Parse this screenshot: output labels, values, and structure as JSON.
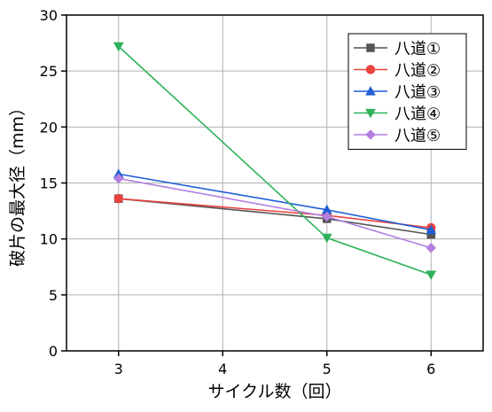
{
  "chart_data": {
    "type": "line",
    "xlabel": "サイクル数（回）",
    "ylabel": "破片の最大径（mm）",
    "xlim": [
      2.5,
      6.5
    ],
    "ylim": [
      0,
      30
    ],
    "xticks": [
      3,
      4,
      5,
      6
    ],
    "yticks": [
      0,
      5,
      10,
      15,
      20,
      25,
      30
    ],
    "grid": true,
    "legend_position": "top-right",
    "series": [
      {
        "name": "八道①",
        "color": "#555555",
        "marker": "square",
        "x": [
          3,
          5,
          6
        ],
        "y": [
          13.6,
          11.8,
          10.4
        ]
      },
      {
        "name": "八道②",
        "color": "#e8433f",
        "marker": "circle",
        "x": [
          3,
          5,
          6
        ],
        "y": [
          13.6,
          12.1,
          11.0
        ]
      },
      {
        "name": "八道③",
        "color": "#1f5fd6",
        "marker": "triangle-up",
        "x": [
          3,
          5,
          6
        ],
        "y": [
          15.8,
          12.6,
          10.8
        ]
      },
      {
        "name": "八道④",
        "color": "#2db25a",
        "marker": "triangle-down",
        "x": [
          3,
          5,
          6
        ],
        "y": [
          27.2,
          10.1,
          6.8
        ]
      },
      {
        "name": "八道⑤",
        "color": "#b27ee0",
        "marker": "diamond",
        "x": [
          3,
          5,
          6
        ],
        "y": [
          15.4,
          12.0,
          9.2
        ]
      }
    ]
  }
}
